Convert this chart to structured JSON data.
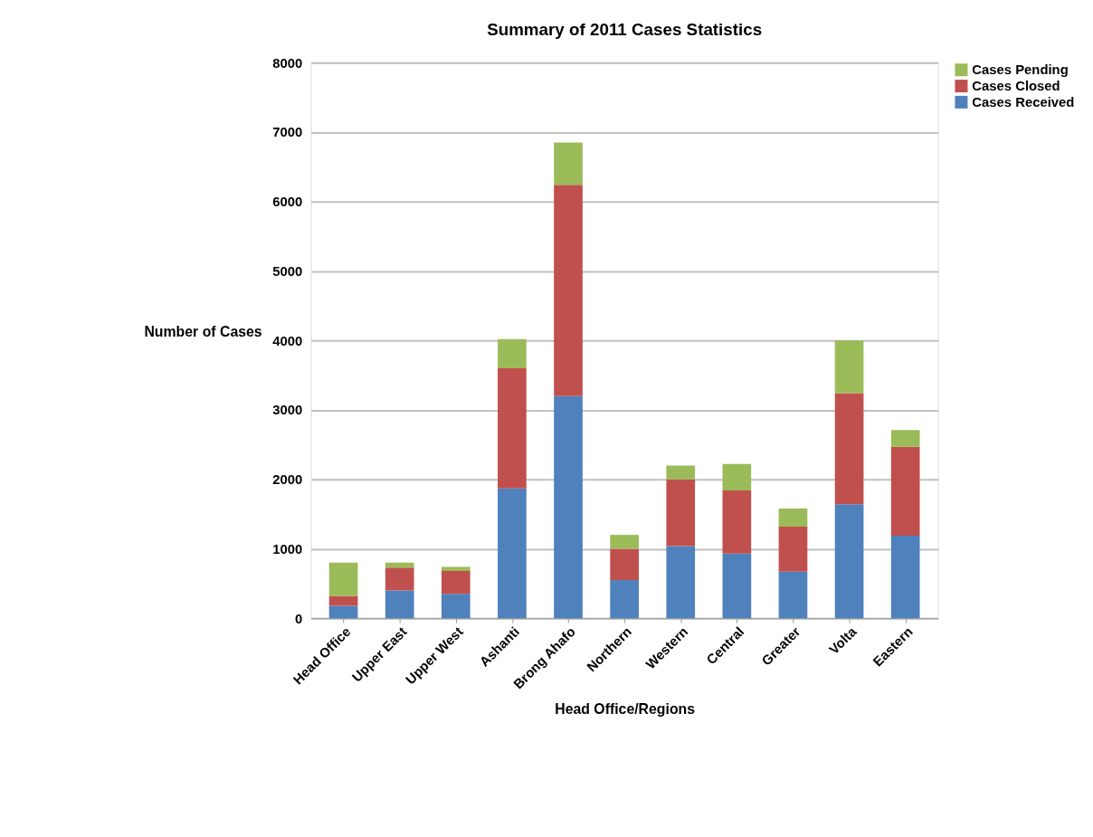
{
  "chart_data": {
    "type": "bar",
    "title": "Summary of 2011 Cases Statistics",
    "xlabel": "Head Office/Regions",
    "ylabel": "Number of Cases",
    "categories": [
      "Head Office",
      "Upper East",
      "Upper West",
      "Ashanti",
      "Brong Ahafo",
      "Northern",
      "Western",
      "Central",
      "Greater",
      "Volta",
      "Eastern"
    ],
    "stacked": true,
    "series": [
      {
        "name": "Cases Received",
        "color": "#4f81bd",
        "values": [
          180,
          400,
          350,
          1870,
          3200,
          550,
          1040,
          930,
          670,
          1640,
          1190
        ]
      },
      {
        "name": "Cases Closed",
        "color": "#c0504d",
        "values": [
          140,
          330,
          330,
          1730,
          3040,
          450,
          960,
          910,
          650,
          1600,
          1280
        ]
      },
      {
        "name": "Cases Pending",
        "color": "#9bbb59",
        "values": [
          480,
          70,
          60,
          420,
          610,
          200,
          200,
          380,
          260,
          760,
          240
        ]
      }
    ],
    "ylim": [
      0,
      8000
    ],
    "yticks": [
      0,
      1000,
      2000,
      3000,
      4000,
      5000,
      6000,
      7000,
      8000
    ],
    "grid": "y",
    "legend": "right"
  }
}
